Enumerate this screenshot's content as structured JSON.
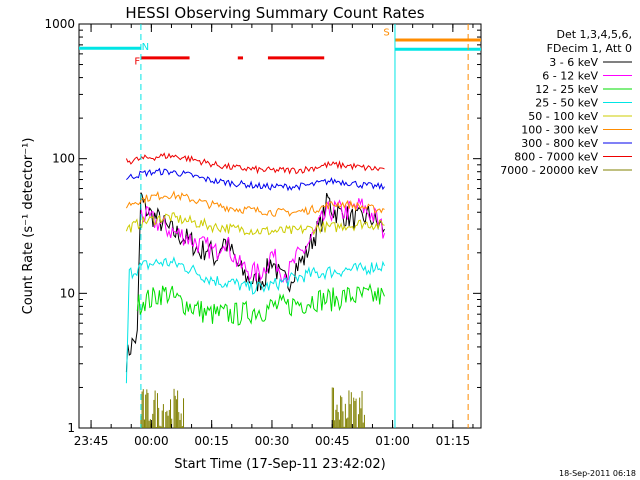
{
  "chart_data": {
    "type": "line",
    "title": "HESSI Observing Summary Count Rates",
    "xlabel": "Start Time (17-Sep-11 23:42:02)",
    "ylabel": "Count Rate (s⁻¹ detector⁻¹)",
    "y_scale": "log",
    "ylim": [
      1,
      1000
    ],
    "xlim_minutes_from_start": [
      0,
      100
    ],
    "x_ticks": [
      {
        "label": "23:45",
        "minute": 3
      },
      {
        "label": "00:00",
        "minute": 18
      },
      {
        "label": "00:15",
        "minute": 33
      },
      {
        "label": "00:30",
        "minute": 48
      },
      {
        "label": "00:45",
        "minute": 63
      },
      {
        "label": "01:00",
        "minute": 78
      },
      {
        "label": "01:15",
        "minute": 93
      }
    ],
    "y_ticks": [
      {
        "label": "1",
        "value": 1
      },
      {
        "label": "10",
        "value": 10
      },
      {
        "label": "100",
        "value": 100
      },
      {
        "label": "1000",
        "value": 1000
      }
    ],
    "legend": {
      "placement": "right",
      "header": [
        "Det 1,3,4,5,6,",
        "FDecim 1, Att 0"
      ],
      "entries": [
        {
          "name": "3 - 6 keV",
          "color": "#000000"
        },
        {
          "name": "6 - 12 keV",
          "color": "#ff00ff"
        },
        {
          "name": "12 - 25 keV",
          "color": "#00dd00"
        },
        {
          "name": "25 - 50 keV",
          "color": "#00e5e5"
        },
        {
          "name": "50 - 100 keV",
          "color": "#cccc00"
        },
        {
          "name": "100 - 300 keV",
          "color": "#ff8c00"
        },
        {
          "name": "300 - 800 keV",
          "color": "#0000ee"
        },
        {
          "name": "800 - 7000 keV",
          "color": "#ee0000"
        },
        {
          "name": "7000 - 20000 keV",
          "color": "#808000"
        }
      ]
    },
    "series": [
      {
        "name": "3 - 6 keV",
        "color": "#000000",
        "points": [
          [
            11.8,
            3.2
          ],
          [
            12.5,
            3.8
          ],
          [
            13.2,
            4.2
          ],
          [
            14.5,
            4.8
          ],
          [
            15.4,
            55
          ],
          [
            16,
            45
          ],
          [
            18,
            38
          ],
          [
            20,
            35
          ],
          [
            22,
            30
          ],
          [
            24,
            28
          ],
          [
            26,
            26
          ],
          [
            28,
            24
          ],
          [
            30,
            20
          ],
          [
            32,
            22
          ],
          [
            34,
            18
          ],
          [
            36,
            25
          ],
          [
            38,
            20
          ],
          [
            40,
            15
          ],
          [
            42,
            13
          ],
          [
            44,
            12
          ],
          [
            46,
            13
          ],
          [
            48,
            18
          ],
          [
            50,
            13
          ],
          [
            52,
            12
          ],
          [
            54,
            16
          ],
          [
            56,
            18
          ],
          [
            58,
            25
          ],
          [
            60,
            32
          ],
          [
            62,
            50
          ],
          [
            63,
            42
          ],
          [
            64,
            40
          ],
          [
            66,
            38
          ],
          [
            68,
            36
          ],
          [
            70,
            35
          ],
          [
            72,
            38
          ],
          [
            74,
            33
          ],
          [
            76,
            30
          ]
        ]
      },
      {
        "name": "6 - 12 keV",
        "color": "#ff00ff",
        "points": [
          [
            15.4,
            40
          ],
          [
            16,
            38
          ],
          [
            18,
            35
          ],
          [
            20,
            33
          ],
          [
            22,
            30
          ],
          [
            24,
            28
          ],
          [
            26,
            27
          ],
          [
            28,
            25
          ],
          [
            30,
            23
          ],
          [
            32,
            22
          ],
          [
            34,
            20
          ],
          [
            36,
            26
          ],
          [
            38,
            20
          ],
          [
            40,
            16
          ],
          [
            42,
            15
          ],
          [
            44,
            14
          ],
          [
            46,
            15
          ],
          [
            48,
            20
          ],
          [
            50,
            15
          ],
          [
            52,
            14
          ],
          [
            54,
            18
          ],
          [
            56,
            21
          ],
          [
            58,
            26
          ],
          [
            60,
            33
          ],
          [
            62,
            40
          ],
          [
            64,
            42
          ],
          [
            66,
            40
          ],
          [
            68,
            42
          ],
          [
            70,
            45
          ],
          [
            72,
            40
          ],
          [
            74,
            36
          ],
          [
            76,
            28
          ]
        ]
      },
      {
        "name": "12 - 25 keV",
        "color": "#00dd00",
        "points": [
          [
            14.5,
            8
          ],
          [
            16,
            9
          ],
          [
            18,
            9
          ],
          [
            20,
            10
          ],
          [
            22,
            10
          ],
          [
            24,
            9
          ],
          [
            26,
            8.5
          ],
          [
            28,
            8
          ],
          [
            30,
            7.5
          ],
          [
            32,
            7
          ],
          [
            34,
            7
          ],
          [
            36,
            7
          ],
          [
            38,
            7
          ],
          [
            40,
            7
          ],
          [
            42,
            7.2
          ],
          [
            44,
            7.5
          ],
          [
            46,
            7.5
          ],
          [
            48,
            8
          ],
          [
            50,
            8
          ],
          [
            52,
            8
          ],
          [
            54,
            8.5
          ],
          [
            56,
            8.5
          ],
          [
            58,
            9
          ],
          [
            60,
            9
          ],
          [
            62,
            9
          ],
          [
            64,
            9
          ],
          [
            66,
            9.5
          ],
          [
            68,
            9.5
          ],
          [
            70,
            9.5
          ],
          [
            72,
            9.5
          ],
          [
            74,
            9.5
          ],
          [
            76,
            9.5
          ]
        ]
      },
      {
        "name": "25 - 50 keV",
        "color": "#00e5e5",
        "points": [
          [
            11.8,
            2.0
          ],
          [
            12.5,
            14
          ],
          [
            14,
            15
          ],
          [
            16,
            16
          ],
          [
            18,
            16.5
          ],
          [
            20,
            17
          ],
          [
            22,
            17
          ],
          [
            24,
            16.5
          ],
          [
            26,
            16
          ],
          [
            28,
            15
          ],
          [
            30,
            14
          ],
          [
            32,
            13
          ],
          [
            34,
            12.5
          ],
          [
            36,
            12
          ],
          [
            38,
            12
          ],
          [
            40,
            11.5
          ],
          [
            42,
            11
          ],
          [
            44,
            11
          ],
          [
            46,
            11
          ],
          [
            48,
            11.5
          ],
          [
            50,
            12
          ],
          [
            52,
            12.5
          ],
          [
            54,
            13
          ],
          [
            56,
            13.5
          ],
          [
            58,
            14
          ],
          [
            60,
            14
          ],
          [
            62,
            14.5
          ],
          [
            64,
            14.5
          ],
          [
            66,
            15
          ],
          [
            68,
            15
          ],
          [
            70,
            15
          ],
          [
            72,
            15.5
          ],
          [
            74,
            16
          ],
          [
            76,
            16
          ]
        ]
      },
      {
        "name": "50 - 100 keV",
        "color": "#cccc00",
        "points": [
          [
            11.8,
            30
          ],
          [
            14,
            32
          ],
          [
            16,
            34
          ],
          [
            18,
            35
          ],
          [
            20,
            36
          ],
          [
            22,
            37
          ],
          [
            24,
            36
          ],
          [
            26,
            35
          ],
          [
            28,
            34
          ],
          [
            30,
            33
          ],
          [
            32,
            32
          ],
          [
            34,
            31
          ],
          [
            36,
            31
          ],
          [
            38,
            30
          ],
          [
            40,
            30
          ],
          [
            42,
            30
          ],
          [
            44,
            29
          ],
          [
            46,
            29
          ],
          [
            48,
            29
          ],
          [
            50,
            29
          ],
          [
            52,
            29
          ],
          [
            54,
            29
          ],
          [
            56,
            30
          ],
          [
            58,
            30
          ],
          [
            60,
            31
          ],
          [
            62,
            31
          ],
          [
            64,
            31
          ],
          [
            66,
            32
          ],
          [
            68,
            32
          ],
          [
            70,
            33
          ],
          [
            72,
            33
          ],
          [
            74,
            32
          ],
          [
            76,
            32
          ]
        ]
      },
      {
        "name": "100 - 300 keV",
        "color": "#ff8c00",
        "points": [
          [
            11.8,
            45
          ],
          [
            14,
            48
          ],
          [
            16,
            50
          ],
          [
            18,
            52
          ],
          [
            20,
            53
          ],
          [
            22,
            54
          ],
          [
            24,
            53
          ],
          [
            26,
            52
          ],
          [
            28,
            50
          ],
          [
            30,
            48
          ],
          [
            32,
            46
          ],
          [
            34,
            45
          ],
          [
            36,
            44
          ],
          [
            38,
            43
          ],
          [
            40,
            42
          ],
          [
            42,
            42
          ],
          [
            44,
            41
          ],
          [
            46,
            41
          ],
          [
            48,
            40
          ],
          [
            50,
            40
          ],
          [
            52,
            40
          ],
          [
            54,
            40
          ],
          [
            56,
            41
          ],
          [
            58,
            42
          ],
          [
            60,
            43
          ],
          [
            62,
            45
          ],
          [
            64,
            46
          ],
          [
            66,
            46
          ],
          [
            68,
            45
          ],
          [
            70,
            44
          ],
          [
            72,
            43
          ],
          [
            74,
            42
          ],
          [
            76,
            42
          ]
        ]
      },
      {
        "name": "300 - 800 keV",
        "color": "#0000ee",
        "points": [
          [
            11.8,
            72
          ],
          [
            14,
            75
          ],
          [
            16,
            78
          ],
          [
            18,
            79
          ],
          [
            20,
            80
          ],
          [
            22,
            80
          ],
          [
            24,
            79
          ],
          [
            26,
            77
          ],
          [
            28,
            75
          ],
          [
            30,
            72
          ],
          [
            32,
            70
          ],
          [
            34,
            68
          ],
          [
            36,
            67
          ],
          [
            38,
            66
          ],
          [
            40,
            65
          ],
          [
            42,
            64
          ],
          [
            44,
            63
          ],
          [
            46,
            62
          ],
          [
            48,
            62
          ],
          [
            50,
            62
          ],
          [
            52,
            62
          ],
          [
            54,
            62
          ],
          [
            56,
            63
          ],
          [
            58,
            64
          ],
          [
            60,
            66
          ],
          [
            62,
            68
          ],
          [
            64,
            68
          ],
          [
            66,
            67
          ],
          [
            68,
            66
          ],
          [
            70,
            64
          ],
          [
            72,
            63
          ],
          [
            74,
            62
          ],
          [
            76,
            62
          ]
        ]
      },
      {
        "name": "800 - 7000 keV",
        "color": "#ee0000",
        "points": [
          [
            11.8,
            95
          ],
          [
            14,
            98
          ],
          [
            16,
            100
          ],
          [
            18,
            102
          ],
          [
            20,
            104
          ],
          [
            22,
            105
          ],
          [
            24,
            104
          ],
          [
            26,
            102
          ],
          [
            28,
            99
          ],
          [
            30,
            96
          ],
          [
            32,
            93
          ],
          [
            34,
            90
          ],
          [
            36,
            88
          ],
          [
            38,
            86
          ],
          [
            40,
            85
          ],
          [
            42,
            84
          ],
          [
            44,
            83
          ],
          [
            46,
            82
          ],
          [
            48,
            82
          ],
          [
            50,
            82
          ],
          [
            52,
            82
          ],
          [
            54,
            82
          ],
          [
            56,
            83
          ],
          [
            58,
            85
          ],
          [
            60,
            88
          ],
          [
            62,
            90
          ],
          [
            64,
            90
          ],
          [
            66,
            89
          ],
          [
            68,
            88
          ],
          [
            70,
            86
          ],
          [
            72,
            85
          ],
          [
            74,
            84
          ],
          [
            76,
            84
          ]
        ]
      },
      {
        "name": "7000 - 20000 keV",
        "color": "#808000",
        "segments": [
          {
            "start": 15.4,
            "end": 26,
            "low": 1,
            "high": 2
          },
          {
            "start": 63,
            "end": 71,
            "low": 1,
            "high": 2
          }
        ]
      }
    ],
    "annotations": [
      {
        "text": "F",
        "color": "#ee0000",
        "minute": 14.5,
        "y": 500
      },
      {
        "text": "N",
        "color": "#00e5e5",
        "minute": 16.5,
        "y": 640
      },
      {
        "text": "S",
        "color": "#ff8c00",
        "minute": 76.5,
        "y": 820
      }
    ],
    "flag_bars": [
      {
        "color": "#00e5e5",
        "y": 660,
        "from": 0,
        "to": 15.4
      },
      {
        "color": "#00e5e5",
        "y": 650,
        "from": 78.6,
        "to": 100
      },
      {
        "color": "#ee0000",
        "y": 560,
        "from": 15.4,
        "to": 27.5
      },
      {
        "color": "#ee0000",
        "y": 560,
        "from": 39.5,
        "to": 40.8
      },
      {
        "color": "#ee0000",
        "y": 560,
        "from": 47,
        "to": 61
      },
      {
        "color": "#ff8c00",
        "y": 760,
        "from": 78.6,
        "to": 100
      }
    ],
    "vertical_lines": [
      {
        "minute": 15.4,
        "style": "dashed",
        "color": "#00e5e5"
      },
      {
        "minute": 78.6,
        "style": "solid",
        "color": "#00e5e5"
      },
      {
        "minute": 96.8,
        "style": "dashed",
        "color": "#ff8c00"
      }
    ]
  },
  "timestamp": "18-Sep-2011 06:18"
}
